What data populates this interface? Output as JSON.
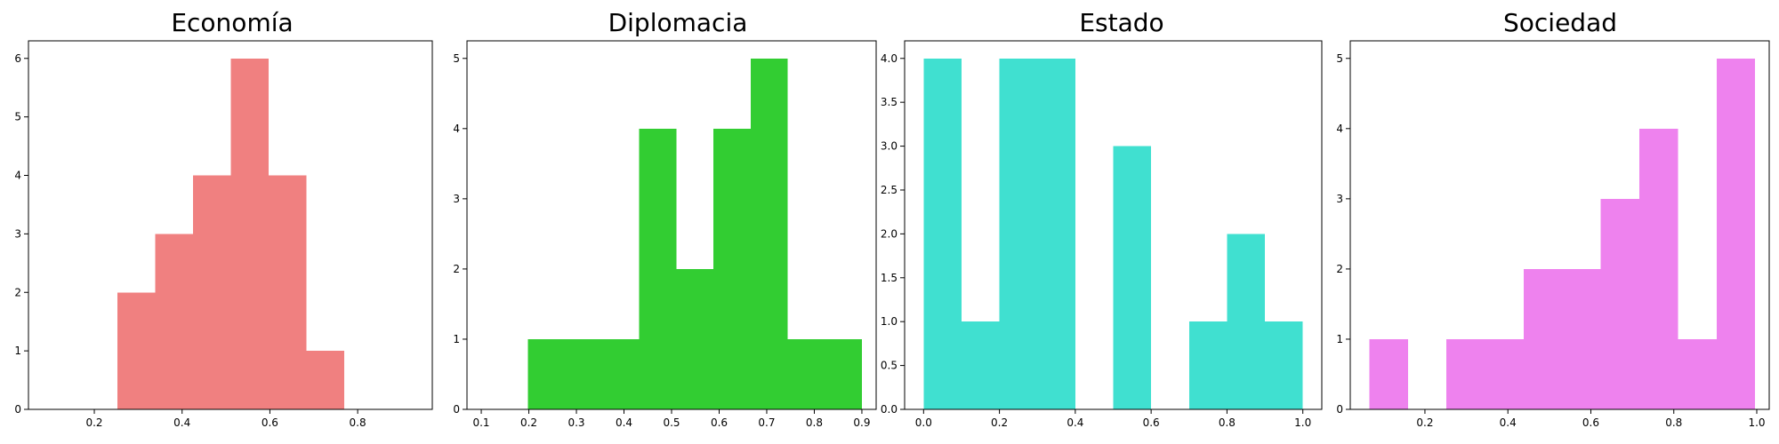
{
  "chart_data": [
    {
      "type": "bar",
      "title": "Economía",
      "color": "#F08080",
      "xlim": [
        0.05,
        0.97
      ],
      "ylim": [
        0,
        6.3
      ],
      "xticks": [
        "0.2",
        "0.4",
        "0.6",
        "0.8"
      ],
      "xtick_values": [
        0.2,
        0.4,
        0.6,
        0.8
      ],
      "yticks": [
        "0",
        "1",
        "2",
        "3",
        "4",
        "5",
        "6"
      ],
      "ytick_values": [
        0,
        1,
        2,
        3,
        4,
        5,
        6
      ],
      "bins": [
        {
          "x0": 0.253,
          "x1": 0.339,
          "count": 2
        },
        {
          "x0": 0.339,
          "x1": 0.425,
          "count": 3
        },
        {
          "x0": 0.425,
          "x1": 0.511,
          "count": 4
        },
        {
          "x0": 0.511,
          "x1": 0.597,
          "count": 6
        },
        {
          "x0": 0.597,
          "x1": 0.683,
          "count": 4
        },
        {
          "x0": 0.683,
          "x1": 0.769,
          "count": 1
        }
      ]
    },
    {
      "type": "bar",
      "title": "Diplomacia",
      "color": "#32CD32",
      "xlim": [
        0.07,
        0.93
      ],
      "ylim": [
        0,
        5.25
      ],
      "xticks": [
        "0.1",
        "0.2",
        "0.3",
        "0.4",
        "0.5",
        "0.6",
        "0.7",
        "0.8",
        "0.9"
      ],
      "xtick_values": [
        0.1,
        0.2,
        0.3,
        0.4,
        0.5,
        0.6,
        0.7,
        0.8,
        0.9
      ],
      "yticks": [
        "0",
        "1",
        "2",
        "3",
        "4",
        "5"
      ],
      "ytick_values": [
        0,
        1,
        2,
        3,
        4,
        5
      ],
      "bins": [
        {
          "x0": 0.198,
          "x1": 0.276,
          "count": 1
        },
        {
          "x0": 0.276,
          "x1": 0.354,
          "count": 1
        },
        {
          "x0": 0.354,
          "x1": 0.432,
          "count": 1
        },
        {
          "x0": 0.432,
          "x1": 0.51,
          "count": 4
        },
        {
          "x0": 0.51,
          "x1": 0.588,
          "count": 2
        },
        {
          "x0": 0.588,
          "x1": 0.666,
          "count": 4
        },
        {
          "x0": 0.666,
          "x1": 0.744,
          "count": 5
        },
        {
          "x0": 0.744,
          "x1": 0.822,
          "count": 1
        },
        {
          "x0": 0.822,
          "x1": 0.9,
          "count": 1
        }
      ]
    },
    {
      "type": "bar",
      "title": "Estado",
      "color": "#40E0D0",
      "xlim": [
        -0.05,
        1.05
      ],
      "ylim": [
        0,
        4.2
      ],
      "xticks": [
        "0.0",
        "0.2",
        "0.4",
        "0.6",
        "0.8",
        "1.0"
      ],
      "xtick_values": [
        0.0,
        0.2,
        0.4,
        0.6,
        0.8,
        1.0
      ],
      "yticks": [
        "0.0",
        "0.5",
        "1.0",
        "1.5",
        "2.0",
        "2.5",
        "3.0",
        "3.5",
        "4.0"
      ],
      "ytick_values": [
        0,
        0.5,
        1,
        1.5,
        2,
        2.5,
        3,
        3.5,
        4
      ],
      "bins": [
        {
          "x0": 0.0,
          "x1": 0.1,
          "count": 4
        },
        {
          "x0": 0.1,
          "x1": 0.2,
          "count": 1
        },
        {
          "x0": 0.2,
          "x1": 0.3,
          "count": 4
        },
        {
          "x0": 0.3,
          "x1": 0.4,
          "count": 4
        },
        {
          "x0": 0.4,
          "x1": 0.5,
          "count": 0
        },
        {
          "x0": 0.5,
          "x1": 0.6,
          "count": 3
        },
        {
          "x0": 0.6,
          "x1": 0.7,
          "count": 0
        },
        {
          "x0": 0.7,
          "x1": 0.8,
          "count": 1
        },
        {
          "x0": 0.8,
          "x1": 0.9,
          "count": 2
        },
        {
          "x0": 0.9,
          "x1": 1.0,
          "count": 1
        }
      ]
    },
    {
      "type": "bar",
      "title": "Sociedad",
      "color": "#EE82EE",
      "xlim": [
        0.02,
        1.03
      ],
      "ylim": [
        0,
        5.25
      ],
      "xticks": [
        "0.2",
        "0.4",
        "0.6",
        "0.8",
        "1.0"
      ],
      "xtick_values": [
        0.2,
        0.4,
        0.6,
        0.8,
        1.0
      ],
      "yticks": [
        "0",
        "1",
        "2",
        "3",
        "4",
        "5"
      ],
      "ytick_values": [
        0,
        1,
        2,
        3,
        4,
        5
      ],
      "bins": [
        {
          "x0": 0.066,
          "x1": 0.159,
          "count": 1
        },
        {
          "x0": 0.159,
          "x1": 0.252,
          "count": 0
        },
        {
          "x0": 0.252,
          "x1": 0.345,
          "count": 1
        },
        {
          "x0": 0.345,
          "x1": 0.438,
          "count": 1
        },
        {
          "x0": 0.438,
          "x1": 0.531,
          "count": 2
        },
        {
          "x0": 0.531,
          "x1": 0.624,
          "count": 2
        },
        {
          "x0": 0.624,
          "x1": 0.717,
          "count": 3
        },
        {
          "x0": 0.717,
          "x1": 0.81,
          "count": 4
        },
        {
          "x0": 0.81,
          "x1": 0.903,
          "count": 1
        },
        {
          "x0": 0.903,
          "x1": 0.996,
          "count": 5
        }
      ]
    }
  ]
}
